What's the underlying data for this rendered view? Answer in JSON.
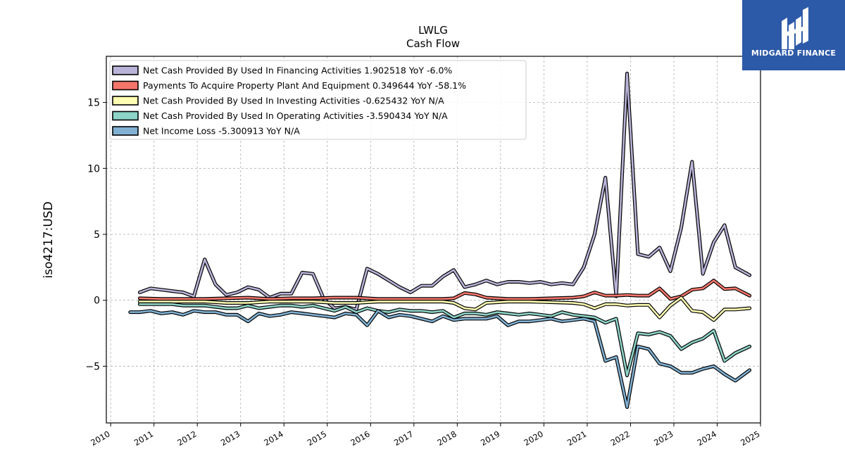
{
  "chart_data": {
    "type": "line",
    "title": "LWLG",
    "subtitle": "Cash Flow",
    "ylabel": "iso4217:USD",
    "xlabel": "",
    "xlim": [
      2009.9,
      2025.0
    ],
    "ylim": [
      -9.3,
      18.5
    ],
    "x_ticks": [
      2010,
      2011,
      2012,
      2013,
      2014,
      2015,
      2016,
      2017,
      2018,
      2019,
      2020,
      2021,
      2022,
      2023,
      2024,
      2025
    ],
    "y_ticks": [
      -5,
      0,
      5,
      10,
      15
    ],
    "grid": true,
    "legend_position": "top-left",
    "series": [
      {
        "name": "Net Cash Provided By Used In Financing Activities",
        "legend_label": "Net Cash Provided By Used In Financing Activities  1.902518 YoY -6.0%",
        "color": "#bab3d8",
        "points": [
          [
            2010.67,
            0.6
          ],
          [
            2010.92,
            0.9
          ],
          [
            2011.17,
            0.8
          ],
          [
            2011.42,
            0.7
          ],
          [
            2011.67,
            0.6
          ],
          [
            2011.92,
            0.3
          ],
          [
            2012.17,
            3.1
          ],
          [
            2012.42,
            1.2
          ],
          [
            2012.67,
            0.4
          ],
          [
            2012.92,
            0.6
          ],
          [
            2013.17,
            1.0
          ],
          [
            2013.42,
            0.8
          ],
          [
            2013.67,
            0.2
          ],
          [
            2013.92,
            0.5
          ],
          [
            2014.17,
            0.5
          ],
          [
            2014.42,
            2.1
          ],
          [
            2014.67,
            2.0
          ],
          [
            2014.92,
            0.1
          ],
          [
            2015.17,
            -0.6
          ],
          [
            2015.42,
            -0.5
          ],
          [
            2015.67,
            -0.7
          ],
          [
            2015.92,
            2.4
          ],
          [
            2016.17,
            2.0
          ],
          [
            2016.42,
            1.5
          ],
          [
            2016.67,
            1.0
          ],
          [
            2016.92,
            0.6
          ],
          [
            2017.17,
            1.1
          ],
          [
            2017.42,
            1.1
          ],
          [
            2017.67,
            1.8
          ],
          [
            2017.92,
            2.3
          ],
          [
            2018.17,
            1.0
          ],
          [
            2018.42,
            1.2
          ],
          [
            2018.67,
            1.5
          ],
          [
            2018.92,
            1.2
          ],
          [
            2019.17,
            1.4
          ],
          [
            2019.42,
            1.4
          ],
          [
            2019.67,
            1.3
          ],
          [
            2019.92,
            1.4
          ],
          [
            2020.17,
            1.2
          ],
          [
            2020.42,
            1.3
          ],
          [
            2020.67,
            1.2
          ],
          [
            2020.92,
            2.5
          ],
          [
            2021.17,
            5.0
          ],
          [
            2021.42,
            9.3
          ],
          [
            2021.67,
            0.3
          ],
          [
            2021.92,
            17.2
          ],
          [
            2022.17,
            3.5
          ],
          [
            2022.42,
            3.3
          ],
          [
            2022.67,
            4.0
          ],
          [
            2022.92,
            2.2
          ],
          [
            2023.17,
            5.5
          ],
          [
            2023.42,
            10.5
          ],
          [
            2023.67,
            2.0
          ],
          [
            2023.92,
            4.4
          ],
          [
            2024.17,
            5.7
          ],
          [
            2024.42,
            2.5
          ],
          [
            2024.75,
            1.9
          ]
        ]
      },
      {
        "name": "Payments To Acquire Property Plant And Equipment",
        "legend_label": "Payments To Acquire Property Plant And Equipment  0.349644 YoY -58.1%",
        "color": "#f5756b",
        "points": [
          [
            2010.67,
            0.15
          ],
          [
            2011.17,
            0.1
          ],
          [
            2011.67,
            0.1
          ],
          [
            2012.17,
            0.1
          ],
          [
            2012.67,
            0.15
          ],
          [
            2013.17,
            0.2
          ],
          [
            2013.67,
            0.1
          ],
          [
            2014.17,
            0.15
          ],
          [
            2014.67,
            0.15
          ],
          [
            2015.17,
            0.2
          ],
          [
            2015.67,
            0.2
          ],
          [
            2016.17,
            0.1
          ],
          [
            2016.67,
            0.1
          ],
          [
            2017.17,
            0.1
          ],
          [
            2017.67,
            0.1
          ],
          [
            2017.92,
            0.15
          ],
          [
            2018.17,
            0.55
          ],
          [
            2018.42,
            0.45
          ],
          [
            2018.67,
            0.2
          ],
          [
            2019.17,
            0.1
          ],
          [
            2019.67,
            0.1
          ],
          [
            2020.17,
            0.15
          ],
          [
            2020.67,
            0.2
          ],
          [
            2020.92,
            0.3
          ],
          [
            2021.17,
            0.6
          ],
          [
            2021.42,
            0.35
          ],
          [
            2021.67,
            0.35
          ],
          [
            2021.92,
            0.4
          ],
          [
            2022.17,
            0.35
          ],
          [
            2022.42,
            0.35
          ],
          [
            2022.67,
            0.9
          ],
          [
            2022.92,
            0.1
          ],
          [
            2023.17,
            0.3
          ],
          [
            2023.42,
            0.8
          ],
          [
            2023.67,
            0.9
          ],
          [
            2023.92,
            1.5
          ],
          [
            2024.17,
            0.85
          ],
          [
            2024.42,
            0.9
          ],
          [
            2024.75,
            0.35
          ]
        ]
      },
      {
        "name": "Net Cash Provided By Used In Investing Activities",
        "legend_label": "Net Cash Provided By Used In Investing Activities  -0.625432 YoY N/A",
        "color": "#ffffb3",
        "points": [
          [
            2010.67,
            -0.1
          ],
          [
            2011.17,
            -0.1
          ],
          [
            2011.67,
            -0.1
          ],
          [
            2012.17,
            -0.1
          ],
          [
            2012.67,
            -0.2
          ],
          [
            2013.17,
            -0.2
          ],
          [
            2013.67,
            -0.1
          ],
          [
            2014.17,
            -0.1
          ],
          [
            2014.67,
            -0.1
          ],
          [
            2015.17,
            -0.2
          ],
          [
            2015.67,
            -0.2
          ],
          [
            2016.17,
            -0.1
          ],
          [
            2016.67,
            -0.1
          ],
          [
            2017.17,
            -0.1
          ],
          [
            2017.67,
            -0.1
          ],
          [
            2017.92,
            -0.2
          ],
          [
            2018.17,
            -0.6
          ],
          [
            2018.42,
            -0.7
          ],
          [
            2018.67,
            -0.2
          ],
          [
            2019.17,
            -0.1
          ],
          [
            2019.67,
            -0.1
          ],
          [
            2020.17,
            -0.15
          ],
          [
            2020.67,
            -0.2
          ],
          [
            2020.92,
            -0.3
          ],
          [
            2021.17,
            -0.6
          ],
          [
            2021.42,
            -0.3
          ],
          [
            2021.67,
            -0.3
          ],
          [
            2021.92,
            -0.4
          ],
          [
            2022.17,
            -0.35
          ],
          [
            2022.42,
            -0.35
          ],
          [
            2022.67,
            -1.3
          ],
          [
            2022.92,
            -0.4
          ],
          [
            2023.17,
            0.2
          ],
          [
            2023.42,
            -0.8
          ],
          [
            2023.67,
            -0.9
          ],
          [
            2023.92,
            -1.5
          ],
          [
            2024.17,
            -0.7
          ],
          [
            2024.42,
            -0.7
          ],
          [
            2024.75,
            -0.6
          ]
        ]
      },
      {
        "name": "Net Cash Provided By Used In Operating Activities",
        "legend_label": "Net Cash Provided By Used In Operating Activities  -3.590434 YoY N/A",
        "color": "#8dd3c7",
        "points": [
          [
            2010.67,
            -0.3
          ],
          [
            2011.17,
            -0.3
          ],
          [
            2011.42,
            -0.3
          ],
          [
            2011.67,
            -0.4
          ],
          [
            2012.17,
            -0.4
          ],
          [
            2012.42,
            -0.5
          ],
          [
            2012.67,
            -0.6
          ],
          [
            2012.92,
            -0.6
          ],
          [
            2013.17,
            -0.4
          ],
          [
            2013.42,
            -0.6
          ],
          [
            2013.67,
            -0.5
          ],
          [
            2013.92,
            -0.4
          ],
          [
            2014.17,
            -0.4
          ],
          [
            2014.42,
            -0.5
          ],
          [
            2014.67,
            -0.4
          ],
          [
            2014.92,
            -0.6
          ],
          [
            2015.17,
            -0.8
          ],
          [
            2015.42,
            -0.5
          ],
          [
            2015.67,
            -0.9
          ],
          [
            2015.92,
            -0.6
          ],
          [
            2016.17,
            -0.8
          ],
          [
            2016.42,
            -0.9
          ],
          [
            2016.67,
            -0.7
          ],
          [
            2016.92,
            -0.8
          ],
          [
            2017.17,
            -0.8
          ],
          [
            2017.42,
            -0.9
          ],
          [
            2017.67,
            -0.8
          ],
          [
            2017.92,
            -1.3
          ],
          [
            2018.17,
            -1.0
          ],
          [
            2018.42,
            -1.0
          ],
          [
            2018.67,
            -1.1
          ],
          [
            2018.92,
            -0.9
          ],
          [
            2019.17,
            -1.0
          ],
          [
            2019.42,
            -1.1
          ],
          [
            2019.67,
            -1.0
          ],
          [
            2019.92,
            -1.1
          ],
          [
            2020.17,
            -1.2
          ],
          [
            2020.42,
            -0.9
          ],
          [
            2020.67,
            -1.1
          ],
          [
            2020.92,
            -1.2
          ],
          [
            2021.17,
            -1.3
          ],
          [
            2021.42,
            -1.7
          ],
          [
            2021.67,
            -1.4
          ],
          [
            2021.92,
            -5.7
          ],
          [
            2022.17,
            -2.5
          ],
          [
            2022.42,
            -2.6
          ],
          [
            2022.67,
            -2.4
          ],
          [
            2022.92,
            -2.7
          ],
          [
            2023.17,
            -3.7
          ],
          [
            2023.42,
            -3.2
          ],
          [
            2023.67,
            -2.9
          ],
          [
            2023.92,
            -2.3
          ],
          [
            2024.17,
            -4.6
          ],
          [
            2024.42,
            -4.0
          ],
          [
            2024.75,
            -3.5
          ]
        ]
      },
      {
        "name": "Net Income Loss",
        "legend_label": "Net Income Loss  -5.300913 YoY N/A",
        "color": "#80b1d3",
        "points": [
          [
            2010.45,
            -0.9
          ],
          [
            2010.67,
            -0.9
          ],
          [
            2010.92,
            -0.8
          ],
          [
            2011.17,
            -1.0
          ],
          [
            2011.42,
            -0.9
          ],
          [
            2011.67,
            -1.1
          ],
          [
            2011.92,
            -0.8
          ],
          [
            2012.17,
            -0.9
          ],
          [
            2012.42,
            -0.9
          ],
          [
            2012.67,
            -1.1
          ],
          [
            2012.92,
            -1.1
          ],
          [
            2013.17,
            -1.6
          ],
          [
            2013.42,
            -1.0
          ],
          [
            2013.67,
            -1.2
          ],
          [
            2013.92,
            -1.1
          ],
          [
            2014.17,
            -0.9
          ],
          [
            2014.42,
            -1.0
          ],
          [
            2014.67,
            -1.1
          ],
          [
            2014.92,
            -1.2
          ],
          [
            2015.17,
            -1.3
          ],
          [
            2015.42,
            -1.0
          ],
          [
            2015.67,
            -1.1
          ],
          [
            2015.92,
            -1.9
          ],
          [
            2016.17,
            -0.8
          ],
          [
            2016.42,
            -1.3
          ],
          [
            2016.67,
            -1.1
          ],
          [
            2016.92,
            -1.2
          ],
          [
            2017.17,
            -1.4
          ],
          [
            2017.42,
            -1.6
          ],
          [
            2017.67,
            -1.2
          ],
          [
            2017.92,
            -1.5
          ],
          [
            2018.17,
            -1.4
          ],
          [
            2018.42,
            -1.4
          ],
          [
            2018.67,
            -1.4
          ],
          [
            2018.92,
            -1.2
          ],
          [
            2019.17,
            -1.9
          ],
          [
            2019.42,
            -1.6
          ],
          [
            2019.67,
            -1.6
          ],
          [
            2019.92,
            -1.5
          ],
          [
            2020.17,
            -1.4
          ],
          [
            2020.42,
            -1.6
          ],
          [
            2020.67,
            -1.5
          ],
          [
            2020.92,
            -1.4
          ],
          [
            2021.17,
            -1.6
          ],
          [
            2021.42,
            -4.6
          ],
          [
            2021.67,
            -4.3
          ],
          [
            2021.92,
            -8.1
          ],
          [
            2022.17,
            -3.5
          ],
          [
            2022.42,
            -3.7
          ],
          [
            2022.67,
            -4.8
          ],
          [
            2022.92,
            -5.0
          ],
          [
            2023.17,
            -5.5
          ],
          [
            2023.42,
            -5.5
          ],
          [
            2023.67,
            -5.2
          ],
          [
            2023.92,
            -5.0
          ],
          [
            2024.17,
            -5.6
          ],
          [
            2024.42,
            -6.1
          ],
          [
            2024.75,
            -5.3
          ]
        ]
      }
    ]
  },
  "logo": {
    "name": "MIDGARD FINANCE",
    "icon": "midgard-finance-logo-icon",
    "background": "#2c59a8"
  }
}
